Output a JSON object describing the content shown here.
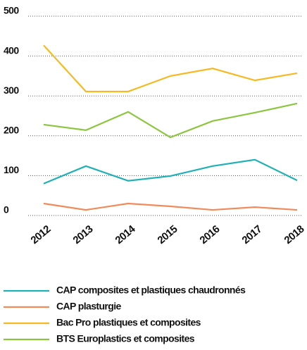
{
  "chart_data": {
    "type": "line",
    "x": [
      "2012",
      "2013",
      "2014",
      "2015",
      "2016",
      "2017",
      "2018"
    ],
    "series": [
      {
        "name": "CAP composites et plastiques chaudronnés",
        "color": "#1fb1b5",
        "values": [
          80,
          124,
          87,
          99,
          124,
          140,
          88
        ]
      },
      {
        "name": "CAP plasturgie",
        "color": "#f08b5b",
        "values": [
          30,
          14,
          30,
          23,
          14,
          21,
          14
        ]
      },
      {
        "name": "Bac Pro plastiques et composites",
        "color": "#f5b921",
        "values": [
          427,
          311,
          311,
          350,
          369,
          339,
          357
        ]
      },
      {
        "name": "BTS Europlastics et composites",
        "color": "#8cc63e",
        "values": [
          228,
          214,
          260,
          196,
          237,
          258,
          281
        ]
      }
    ],
    "ylim": [
      0,
      500
    ],
    "yticks": [
      0,
      100,
      200,
      300,
      400,
      500
    ],
    "grid": true
  }
}
